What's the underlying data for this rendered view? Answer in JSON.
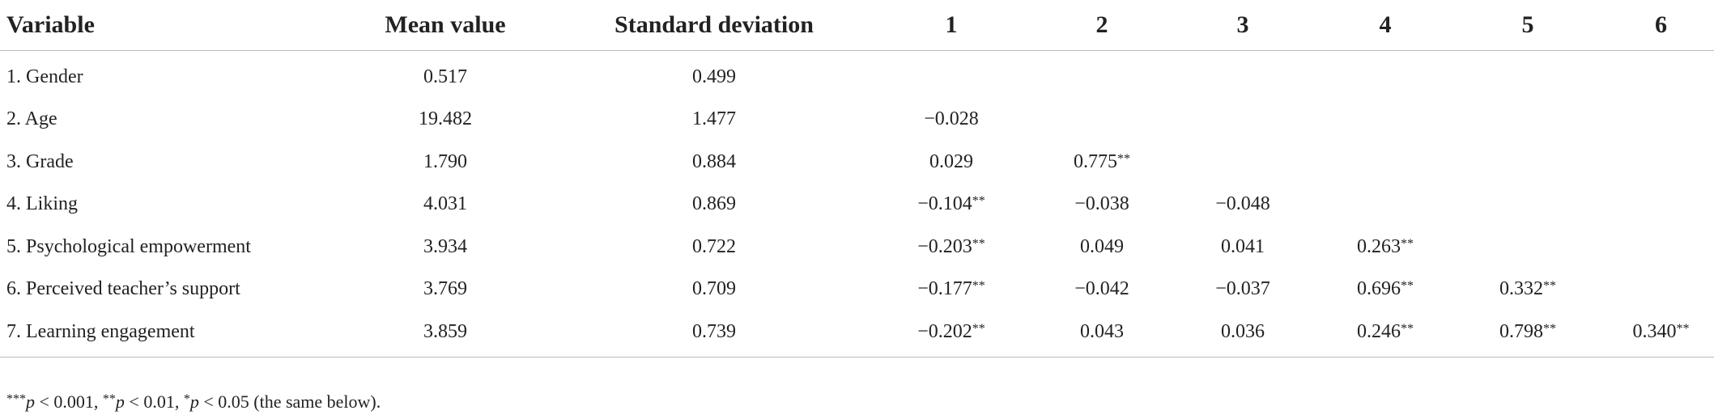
{
  "table": {
    "header": [
      "Variable",
      "Mean value",
      "Standard deviation",
      "1",
      "2",
      "3",
      "4",
      "5",
      "6"
    ],
    "rows": [
      [
        "1. Gender",
        "0.517",
        "0.499",
        null,
        null,
        null,
        null,
        null,
        null
      ],
      [
        "2. Age",
        "19.482",
        "1.477",
        "−0.028",
        null,
        null,
        null,
        null,
        null
      ],
      [
        "3. Grade",
        "1.790",
        "0.884",
        "0.029",
        "0.775**",
        null,
        null,
        null,
        null
      ],
      [
        "4. Liking",
        "4.031",
        "0.869",
        "−0.104**",
        "−0.038",
        "−0.048",
        null,
        null,
        null
      ],
      [
        "5. Psychological empowerment",
        "3.934",
        "0.722",
        "−0.203**",
        "0.049",
        "0.041",
        "0.263**",
        null,
        null
      ],
      [
        "6. Perceived teacher’s support",
        "3.769",
        "0.709",
        "−0.177**",
        "−0.042",
        "−0.037",
        "0.696**",
        "0.332**",
        null
      ],
      [
        "7. Learning engagement",
        "3.859",
        "0.739",
        "−0.202**",
        "0.043",
        "0.036",
        "0.246**",
        "0.798**",
        "0.340**"
      ]
    ],
    "footnote": [
      "***",
      "p",
      " < 0.001, ",
      "**",
      "p",
      " < 0.01, ",
      "*",
      "p",
      " < 0.05 (the same below)."
    ]
  }
}
